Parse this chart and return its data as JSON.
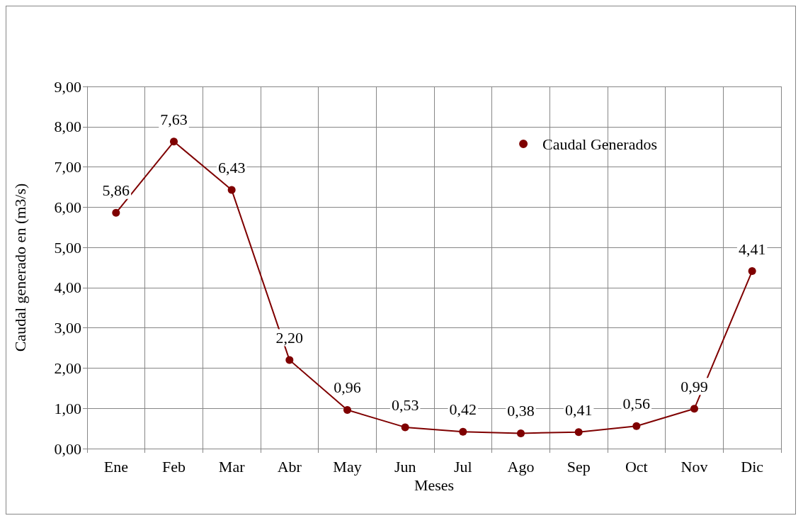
{
  "chart_data": {
    "type": "line",
    "xlabel": "Meses",
    "ylabel": "Caudal generado en (m3/s)",
    "categories": [
      "Ene",
      "Feb",
      "Mar",
      "Abr",
      "May",
      "Jun",
      "Jul",
      "Ago",
      "Sep",
      "Oct",
      "Nov",
      "Dic"
    ],
    "series": [
      {
        "name": "Caudal Generados",
        "color": "#7f0000",
        "values": [
          5.86,
          7.63,
          6.43,
          2.2,
          0.96,
          0.53,
          0.42,
          0.38,
          0.41,
          0.56,
          0.99,
          4.41
        ],
        "value_labels": [
          "5,86",
          "7,63",
          "6,43",
          "2,20",
          "0,96",
          "0,53",
          "0,42",
          "0,38",
          "0,41",
          "0,56",
          "0,99",
          "4,41"
        ]
      }
    ],
    "ylim": [
      0,
      9
    ],
    "yticks": [
      {
        "value": 0,
        "label": "0,00"
      },
      {
        "value": 1,
        "label": "1,00"
      },
      {
        "value": 2,
        "label": "2,00"
      },
      {
        "value": 3,
        "label": "3,00"
      },
      {
        "value": 4,
        "label": "4,00"
      },
      {
        "value": 5,
        "label": "5,00"
      },
      {
        "value": 6,
        "label": "6,00"
      },
      {
        "value": 7,
        "label": "7,00"
      },
      {
        "value": 8,
        "label": "8,00"
      },
      {
        "value": 9,
        "label": "9,00"
      }
    ],
    "grid": true,
    "legend": "top right",
    "marker": "circle",
    "line_style": "solid"
  }
}
